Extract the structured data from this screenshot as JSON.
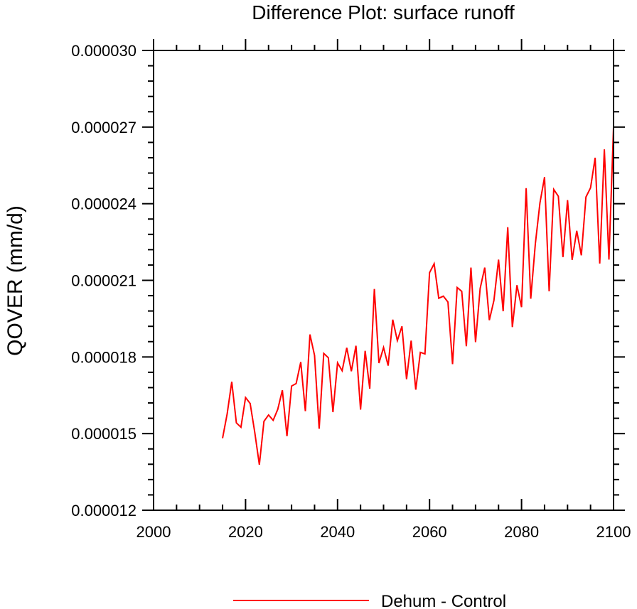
{
  "chart_data": {
    "type": "line",
    "title": "Difference Plot: surface runoff",
    "xlabel": "",
    "ylabel": "QOVER  (mm/d)",
    "xlim": [
      2000,
      2100
    ],
    "ylim": [
      1.2e-05,
      3e-05
    ],
    "x_ticks": [
      "2000",
      "2020",
      "2040",
      "2060",
      "2080",
      "2100"
    ],
    "y_ticks": [
      "0.000012",
      "0.000015",
      "0.000018",
      "0.000021",
      "0.000024",
      "0.000027",
      "0.000030"
    ],
    "grid": false,
    "legend_position": "bottom-center",
    "series": [
      {
        "name": "Dehum - Control",
        "color": "#ff0000",
        "x": [
          2015,
          2016,
          2017,
          2018,
          2019,
          2020,
          2021,
          2022,
          2023,
          2024,
          2025,
          2026,
          2027,
          2028,
          2029,
          2030,
          2031,
          2032,
          2033,
          2034,
          2035,
          2036,
          2037,
          2038,
          2039,
          2040,
          2041,
          2042,
          2043,
          2044,
          2045,
          2046,
          2047,
          2048,
          2049,
          2050,
          2051,
          2052,
          2053,
          2054,
          2055,
          2056,
          2057,
          2058,
          2059,
          2060,
          2061,
          2062,
          2063,
          2064,
          2065,
          2066,
          2067,
          2068,
          2069,
          2070,
          2071,
          2072,
          2073,
          2074,
          2075,
          2076,
          2077,
          2078,
          2079,
          2080,
          2081,
          2082,
          2083,
          2084,
          2085,
          2086,
          2087,
          2088,
          2089,
          2090,
          2091,
          2092,
          2093,
          2094,
          2095,
          2096,
          2097,
          2098,
          2099,
          2100
        ],
        "values": [
          1.482e-05,
          1.577e-05,
          1.703e-05,
          1.542e-05,
          1.525e-05,
          1.641e-05,
          1.618e-05,
          1.505e-05,
          1.378e-05,
          1.548e-05,
          1.573e-05,
          1.552e-05,
          1.595e-05,
          1.67e-05,
          1.49e-05,
          1.686e-05,
          1.696e-05,
          1.78e-05,
          1.588e-05,
          1.888e-05,
          1.806e-05,
          1.519e-05,
          1.814e-05,
          1.797e-05,
          1.584e-05,
          1.777e-05,
          1.746e-05,
          1.836e-05,
          1.744e-05,
          1.844e-05,
          1.594e-05,
          1.824e-05,
          1.676e-05,
          2.066e-05,
          1.776e-05,
          1.837e-05,
          1.766e-05,
          1.946e-05,
          1.864e-05,
          1.92e-05,
          1.713e-05,
          1.864e-05,
          1.672e-05,
          1.818e-05,
          1.812e-05,
          2.13e-05,
          2.165e-05,
          2.03e-05,
          2.038e-05,
          2.015e-05,
          1.772e-05,
          2.072e-05,
          2.057e-05,
          1.842e-05,
          2.15e-05,
          1.858e-05,
          2.068e-05,
          2.15e-05,
          1.944e-05,
          2.022e-05,
          2.181e-05,
          1.979e-05,
          2.308e-05,
          1.917e-05,
          2.081e-05,
          1.995e-05,
          2.461e-05,
          2.028e-05,
          2.243e-05,
          2.403e-05,
          2.504e-05,
          2.057e-05,
          2.456e-05,
          2.429e-05,
          2.191e-05,
          2.414e-05,
          2.18e-05,
          2.294e-05,
          2.198e-05,
          2.426e-05,
          2.462e-05,
          2.58e-05,
          2.166e-05,
          2.613e-05,
          2.181e-05,
          2.7e-05
        ]
      }
    ]
  }
}
